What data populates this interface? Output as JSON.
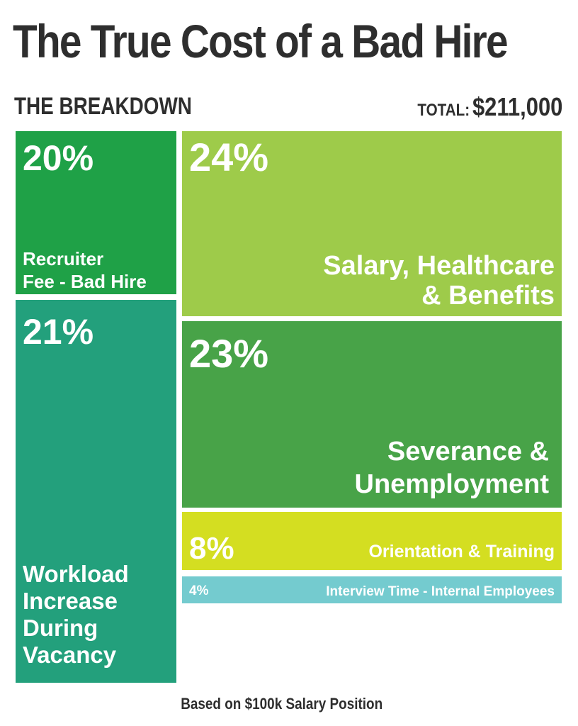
{
  "header": {
    "title": "The True Cost of a Bad Hire",
    "subtitle": "THE BREAKDOWN",
    "total_label": "TOTAL:",
    "total_value": "$211,000"
  },
  "footnote": "Based on $100k Salary Position",
  "chart_data": {
    "type": "treemap",
    "title": "The True Cost of a Bad Hire",
    "total": "$211,000",
    "unit": "%",
    "segments": [
      {
        "label": "Recruiter Fee - Bad Hire",
        "label_lines": [
          "Recruiter",
          "Fee - Bad Hire"
        ],
        "value": 20,
        "value_label": "20%",
        "color": "#1fa147"
      },
      {
        "label": "Workload Increase During Vacancy",
        "label_lines": [
          "Workload",
          "Increase",
          "During",
          "Vacancy"
        ],
        "value": 21,
        "value_label": "21%",
        "color": "#23a07c"
      },
      {
        "label": "Salary, Healthcare & Benefits",
        "label_lines": [
          "Salary, Healthcare",
          "& Benefits"
        ],
        "value": 24,
        "value_label": "24%",
        "color": "#9ecb4a"
      },
      {
        "label": "Severance & Unemployment",
        "label_lines": [
          "Severance &",
          "Unemployment"
        ],
        "value": 23,
        "value_label": "23%",
        "color": "#48a348"
      },
      {
        "label": "Orientation & Training",
        "label_lines": [
          "Orientation & Training"
        ],
        "value": 8,
        "value_label": "8%",
        "color": "#d4de21"
      },
      {
        "label": "Interview Time - Internal Employees",
        "label_lines": [
          "Interview Time - Internal Employees"
        ],
        "value": 4,
        "value_label": "4%",
        "color": "#74cbcf"
      }
    ]
  }
}
